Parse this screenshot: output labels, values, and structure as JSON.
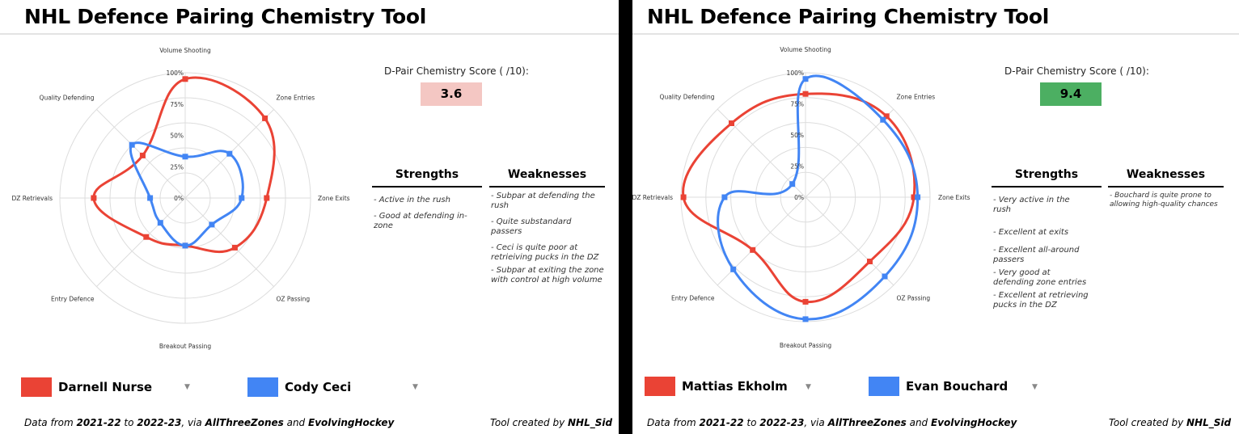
{
  "colors": {
    "red": "#ea4335",
    "blue": "#4285f4",
    "score_low": "#f4c7c3",
    "score_high": "#4caf62",
    "grid": "#dddddd"
  },
  "panels": [
    {
      "title": "NHL Defence Pairing Chemistry Tool",
      "score_label": "D-Pair Chemistry Score ( /10):",
      "score_value": "3.6",
      "strengths_title": "Strengths",
      "weaknesses_title": "Weaknesses",
      "strengths": [
        "- Active in the rush",
        "- Good at defending in-zone"
      ],
      "weaknesses": [
        "- Subpar at defending the rush",
        "- Quite substandard passers",
        "- Ceci is quite poor at retrieiving pucks in the DZ",
        "- Subpar at exiting the zone with control at high volume"
      ],
      "players": [
        {
          "name": "Darnell Nurse",
          "color": "red"
        },
        {
          "name": "Cody Ceci",
          "color": "blue"
        }
      ],
      "footer": {
        "prefix": "Data from ",
        "from": "2021-22",
        "to_word": " to ",
        "to": "2022-23",
        "via": ", via ",
        "src1": "AllThreeZones",
        "and": " and ",
        "src2": "EvolvingHockey",
        "credit_prefix": "Tool created by ",
        "credit_name": "NHL_Sid"
      }
    },
    {
      "title": "NHL Defence Pairing Chemistry Tool",
      "score_label": "D-Pair Chemistry Score ( /10):",
      "score_value": "9.4",
      "strengths_title": "Strengths",
      "weaknesses_title": "Weaknesses",
      "strengths": [
        "- Very active in the rush",
        "- Excellent at exits",
        "- Excellent all-around passers",
        "- Very good at defending zone entries",
        "- Excellent at retrieving pucks in the DZ"
      ],
      "weaknesses": [
        "- Bouchard is quite prone to allowing high-quality chances"
      ],
      "players": [
        {
          "name": "Mattias Ekholm",
          "color": "red"
        },
        {
          "name": "Evan Bouchard",
          "color": "blue"
        }
      ],
      "footer": {
        "prefix": "Data from ",
        "from": "2021-22",
        "to_word": " to ",
        "to": "2022-23",
        "via": ", via ",
        "src1": "AllThreeZones",
        "and": " and ",
        "src2": "EvolvingHockey",
        "credit_prefix": "Tool created by ",
        "credit_name": "NHL_Sid"
      }
    }
  ],
  "chart_data": [
    {
      "type": "radar",
      "axes": [
        "Volume Shooting",
        "Zone Entries",
        "Zone Exits",
        "OZ Passing",
        "Breakout Passing",
        "Entry Defence",
        "DZ Retrievals",
        "Quality Defending"
      ],
      "ticks": [
        "0%",
        "25%",
        "50%",
        "75%",
        "100%"
      ],
      "range": [
        0,
        100
      ],
      "series": [
        {
          "name": "Darnell Nurse",
          "color": "red",
          "values": [
            95,
            90,
            65,
            56,
            38,
            44,
            73,
            48
          ]
        },
        {
          "name": "Cody Ceci",
          "color": "blue",
          "values": [
            33,
            50,
            45,
            30,
            38,
            28,
            28,
            60
          ]
        }
      ]
    },
    {
      "type": "radar",
      "axes": [
        "Volume Shooting",
        "Zone Entries",
        "Zone Exits",
        "OZ Passing",
        "Breakout Passing",
        "Entry Defence",
        "DZ Retrievals",
        "Quality Defending"
      ],
      "ticks": [
        "0%",
        "25%",
        "50%",
        "75%",
        "100%"
      ],
      "range": [
        0,
        100
      ],
      "series": [
        {
          "name": "Mattias Ekholm",
          "color": "red",
          "values": [
            83,
            92,
            87,
            73,
            84,
            60,
            98,
            84
          ]
        },
        {
          "name": "Evan Bouchard",
          "color": "blue",
          "values": [
            95,
            88,
            90,
            90,
            98,
            82,
            65,
            15
          ]
        }
      ]
    }
  ]
}
